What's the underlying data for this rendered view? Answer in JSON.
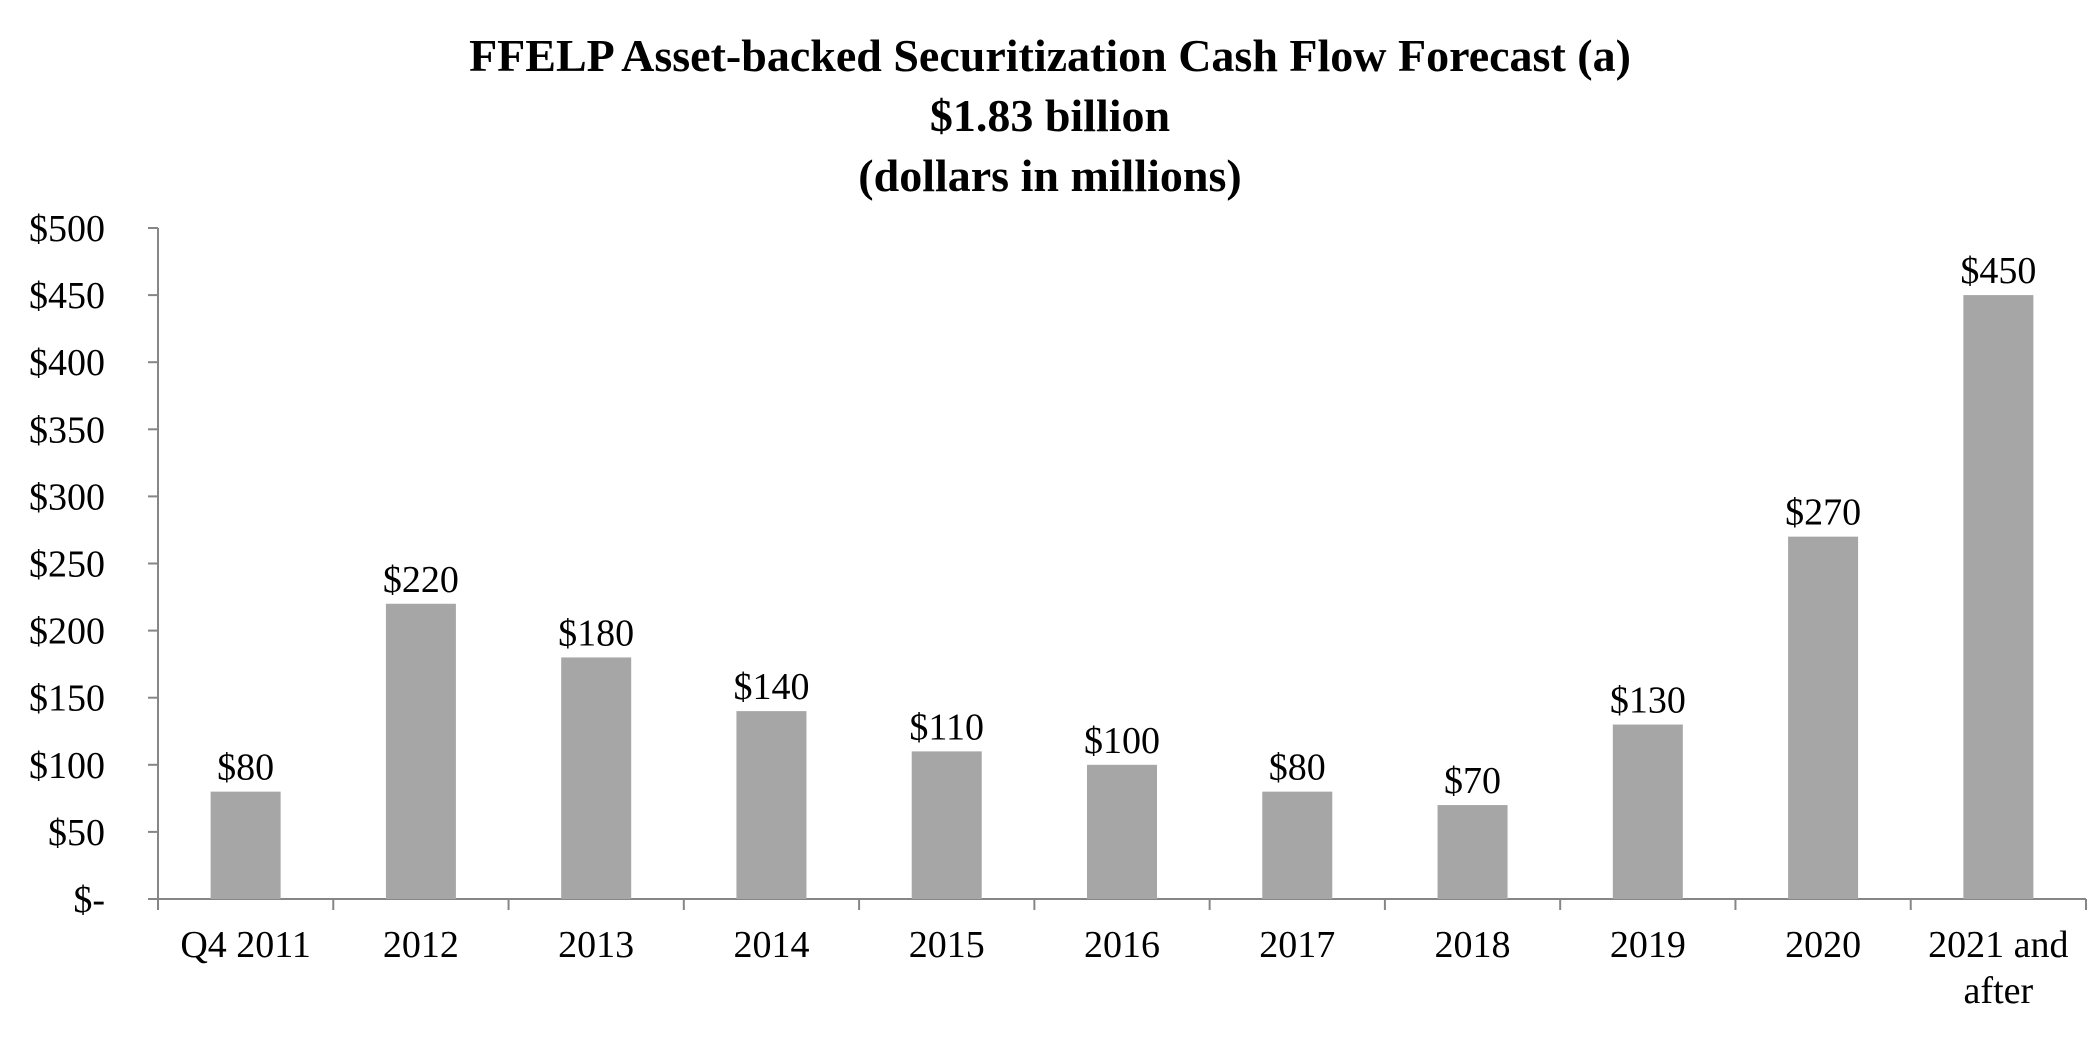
{
  "chart_data": {
    "type": "bar",
    "title": "FFELP Asset-backed Securitization Cash Flow Forecast (a)",
    "subtitle": "$1.83 billion",
    "subtitle2": "(dollars in millions)",
    "xlabel": "",
    "ylabel": "",
    "categories": [
      "Q4 2011",
      "2012",
      "2013",
      "2014",
      "2015",
      "2016",
      "2017",
      "2018",
      "2019",
      "2020",
      "2021 and after"
    ],
    "values": [
      80,
      220,
      180,
      140,
      110,
      100,
      80,
      70,
      130,
      270,
      450
    ],
    "data_labels": [
      "$80",
      "$220",
      "$180",
      "$140",
      "$110",
      "$100",
      "$80",
      "$70",
      "$130",
      "$270",
      "$450"
    ],
    "ylim": [
      0,
      500
    ],
    "y_ticks": [
      0,
      50,
      100,
      150,
      200,
      250,
      300,
      350,
      400,
      450,
      500
    ],
    "y_tick_labels": [
      "$-",
      "$50",
      "$100",
      "$150",
      "$200",
      "$250",
      "$300",
      "$350",
      "$400",
      "$450",
      "$500"
    ],
    "grid": false,
    "legend": "none",
    "colors": {
      "bar": "#a6a6a6",
      "axis": "#868686",
      "text": "#000000"
    }
  }
}
